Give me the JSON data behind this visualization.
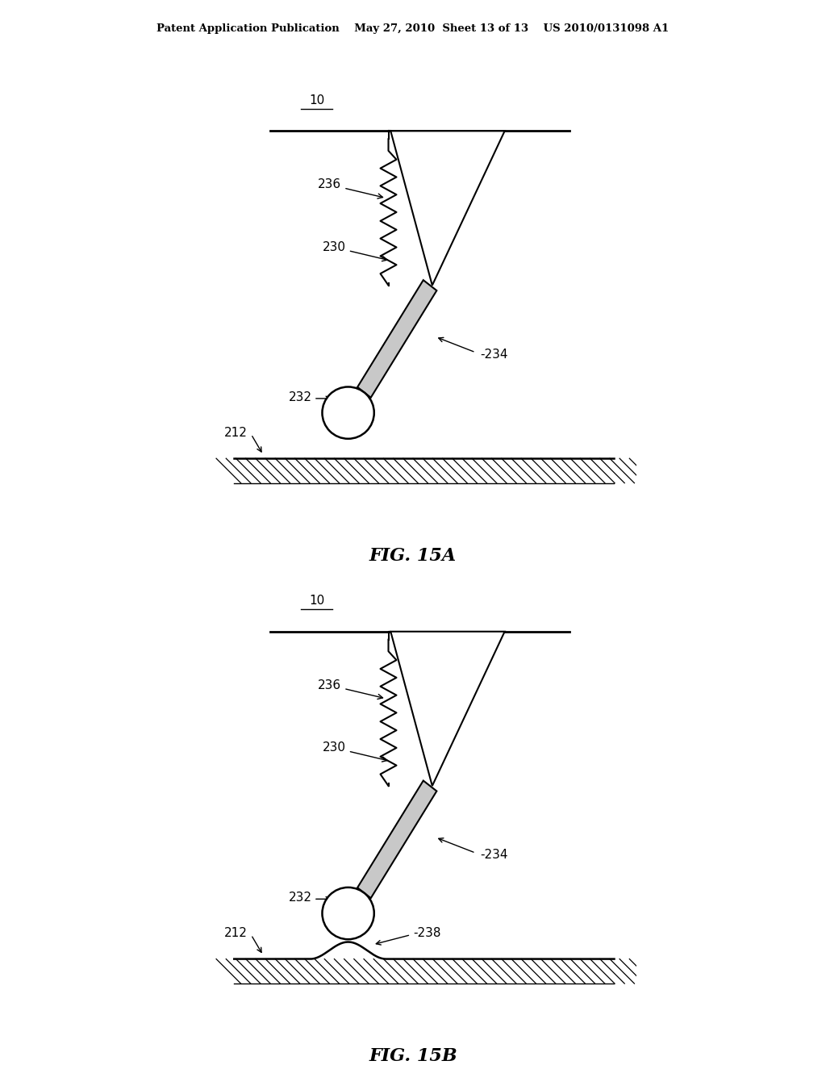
{
  "bg_color": "#ffffff",
  "line_color": "#000000",
  "header_text": "Patent Application Publication    May 27, 2010  Sheet 13 of 13    US 2010/0131098 A1",
  "fig15a_label": "FIG. 15A",
  "fig15b_label": "FIG. 15B"
}
